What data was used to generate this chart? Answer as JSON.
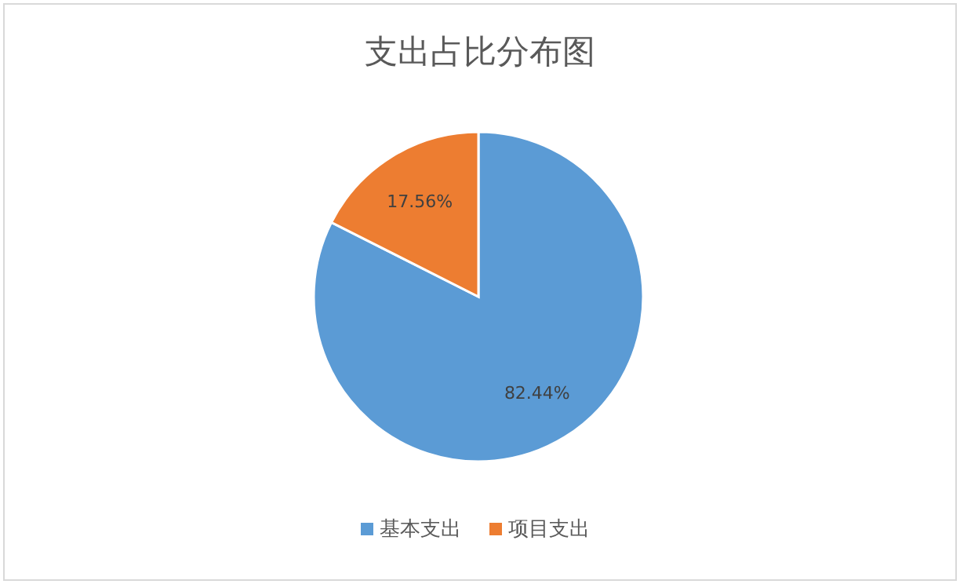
{
  "chart_data": {
    "type": "pie",
    "title": "支出占比分布图",
    "categories": [
      "基本支出",
      "项目支出"
    ],
    "values": [
      82.44,
      17.56
    ],
    "value_labels": [
      "82.44%",
      "17.56%"
    ],
    "colors": [
      "#5b9bd5",
      "#ed7d31"
    ],
    "legend": "bottom"
  }
}
